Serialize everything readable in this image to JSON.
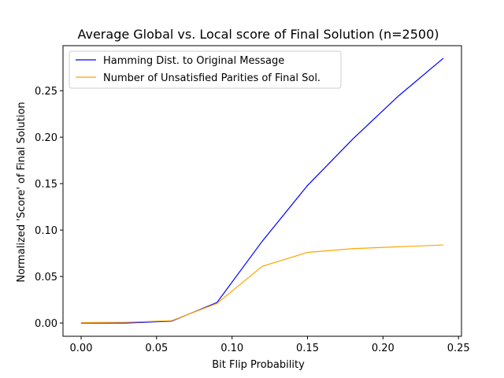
{
  "chart_data": {
    "type": "line",
    "title": "Average Global vs. Local score of Final Solution (n=2500)",
    "xlabel": "Bit Flip Probability",
    "ylabel": "Normalized 'Score' of Final Solution",
    "xlim": [
      -0.012,
      0.252
    ],
    "ylim": [
      -0.0143,
      0.2985
    ],
    "xticks": [
      0.0,
      0.05,
      0.1,
      0.15,
      0.2,
      0.25
    ],
    "xtick_labels": [
      "0.00",
      "0.05",
      "0.10",
      "0.15",
      "0.20",
      "0.25"
    ],
    "yticks": [
      0.0,
      0.05,
      0.1,
      0.15,
      0.2,
      0.25
    ],
    "ytick_labels": [
      "0.00",
      "0.05",
      "0.10",
      "0.15",
      "0.20",
      "0.25"
    ],
    "grid": false,
    "legend_position": "top-left",
    "series": [
      {
        "name": "Hamming Dist. to Original Message",
        "color": "#0000ff",
        "x": [
          0.0,
          0.03,
          0.06,
          0.09,
          0.12,
          0.15,
          0.18,
          0.21,
          0.24
        ],
        "y": [
          0.0,
          0.0,
          0.002,
          0.022,
          0.088,
          0.148,
          0.198,
          0.244,
          0.285
        ]
      },
      {
        "name": "Number of Unsatisfied Parities of Final Sol.",
        "color": "#ffa500",
        "x": [
          0.0,
          0.03,
          0.06,
          0.09,
          0.12,
          0.15,
          0.18,
          0.21,
          0.24
        ],
        "y": [
          0.0005,
          0.0008,
          0.0025,
          0.021,
          0.061,
          0.076,
          0.08,
          0.082,
          0.084
        ]
      }
    ]
  }
}
